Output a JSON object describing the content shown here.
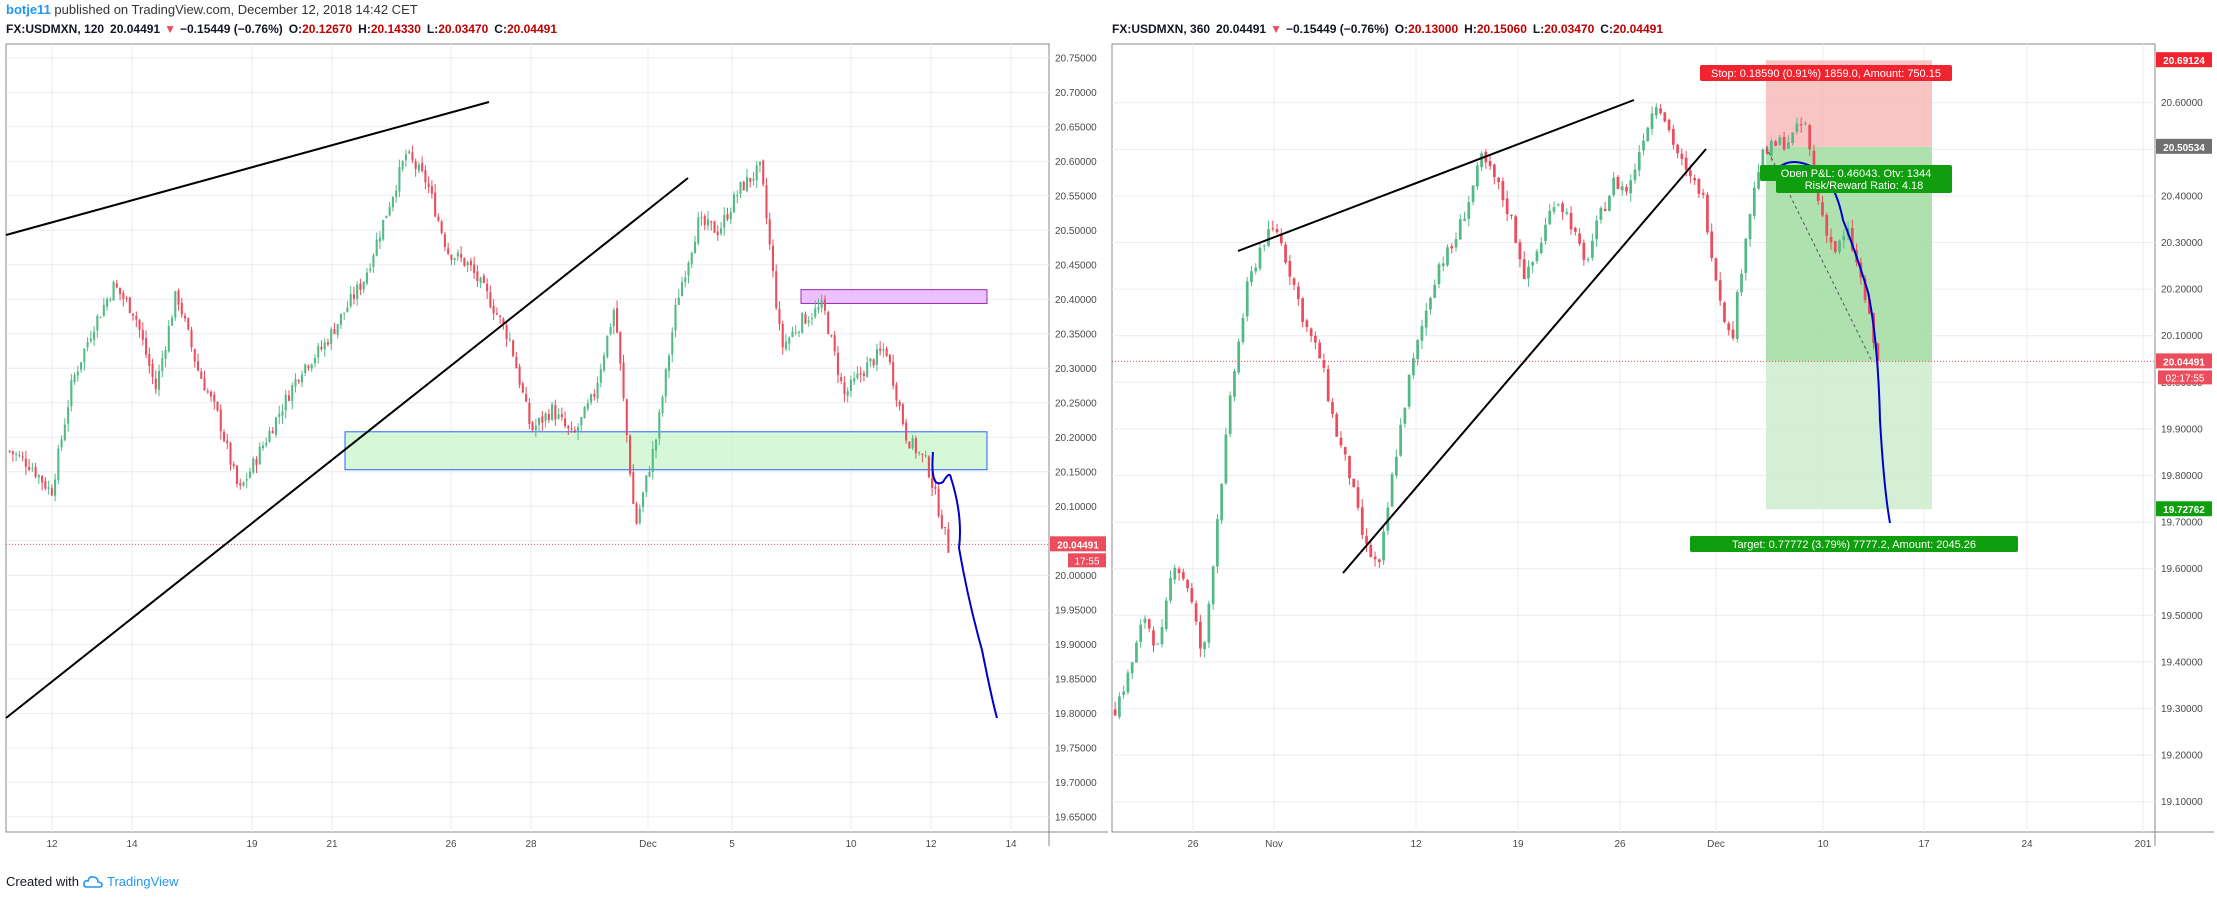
{
  "header": {
    "author": "botje11",
    "meta": "published on TradingView.com, December 12, 2018 14:42 CET"
  },
  "footer": {
    "created_with": "Created with",
    "brand": "TradingView"
  },
  "chart_data": [
    {
      "type": "candlestick",
      "symbol": "FX:USDMXN",
      "interval": "120",
      "quote": {
        "last": "20.04491",
        "change": "−0.15449 (−0.76%)",
        "direction": "down",
        "o": "20.12670",
        "h": "20.14330",
        "l": "20.03470",
        "c": "20.04491"
      },
      "y_ticks": [
        "20.75000",
        "20.70000",
        "20.65000",
        "20.60000",
        "20.55000",
        "20.50000",
        "20.45000",
        "20.40000",
        "20.35000",
        "20.30000",
        "20.25000",
        "20.20000",
        "20.15000",
        "20.10000",
        "20.05000",
        "20.00000",
        "19.95000",
        "19.90000",
        "19.85000",
        "19.80000",
        "19.75000",
        "19.70000",
        "19.65000"
      ],
      "ylim": [
        19.628,
        20.77
      ],
      "x_ticks": [
        "12",
        "14",
        "19",
        "21",
        "26",
        "28",
        "Dec",
        "5",
        "10",
        "12",
        "14"
      ],
      "last_price_label": "20.04491",
      "countdown_label": "17:55",
      "approx_close_path": [
        20.18,
        20.16,
        20.12,
        20.28,
        20.36,
        20.42,
        20.38,
        20.27,
        20.41,
        20.3,
        20.23,
        20.12,
        20.18,
        20.24,
        20.3,
        20.33,
        20.38,
        20.43,
        20.52,
        20.61,
        20.57,
        20.47,
        20.45,
        20.4,
        20.34,
        20.21,
        20.24,
        20.2,
        20.26,
        20.39,
        20.07,
        20.2,
        20.4,
        20.51,
        20.5,
        20.56,
        20.59,
        20.33,
        20.37,
        20.39,
        20.26,
        20.3,
        20.33,
        20.2,
        20.16,
        20.04
      ],
      "annotations": {
        "resistance_zone": [
          20.394,
          20.414
        ],
        "support_zone": [
          20.153,
          20.208
        ],
        "projected_path_end": 19.8
      },
      "grid": true
    },
    {
      "type": "candlestick",
      "symbol": "FX:USDMXN",
      "interval": "360",
      "quote": {
        "last": "20.04491",
        "change": "−0.15449 (−0.76%)",
        "direction": "down",
        "o": "20.13000",
        "h": "20.15060",
        "l": "20.03470",
        "c": "20.04491"
      },
      "y_ticks": [
        "20.60000",
        "20.50000",
        "20.40000",
        "20.30000",
        "20.20000",
        "20.10000",
        "20.00000",
        "19.90000",
        "19.80000",
        "19.70000",
        "19.60000",
        "19.50000",
        "19.40000",
        "19.30000",
        "19.20000",
        "19.10000"
      ],
      "ylim": [
        19.035,
        20.726
      ],
      "x_ticks": [
        "26",
        "Nov",
        "12",
        "19",
        "26",
        "Dec",
        "10",
        "17",
        "24",
        "201"
      ],
      "price_labels": {
        "stop": "20.69124",
        "entry": "20.50534",
        "last": "20.04491",
        "countdown": "02:17:55",
        "target": "19.72762"
      },
      "approx_close_path": [
        19.3,
        19.38,
        19.5,
        19.42,
        19.62,
        19.56,
        19.4,
        19.72,
        20.0,
        20.2,
        20.3,
        20.33,
        20.23,
        20.12,
        20.05,
        19.9,
        19.8,
        19.65,
        19.6,
        19.82,
        20.0,
        20.13,
        20.25,
        20.29,
        20.38,
        20.48,
        20.43,
        20.35,
        20.22,
        20.3,
        20.4,
        20.35,
        20.25,
        20.35,
        20.43,
        20.41,
        20.53,
        20.61,
        20.52,
        20.44,
        20.41,
        20.22,
        20.08,
        20.32,
        20.48,
        20.51,
        20.52,
        20.56,
        20.38,
        20.28,
        20.32,
        20.2,
        20.04
      ],
      "position": {
        "stop_label": "Stop: 0.18590 (0.91%) 1859.0, Amount: 750.15",
        "pnl_label": "Open P&L: 0.46043, Qty: 1344",
        "rr_label": "Risk/Reward Ratio: 4.18",
        "target_label": "Target: 0.77772 (3.79%) 7777.2, Amount: 2045.26"
      },
      "annotations": {
        "projected_path_end": 19.765
      },
      "grid": true
    }
  ],
  "colors": {
    "up": "#53b987",
    "down": "#eb4d5c",
    "grid": "#e9ecf0",
    "axis_text": "#4a4a4a",
    "projection": "#0000cc",
    "trendline": "#000000",
    "resistance_fill": "#e7b6ff",
    "resistance_stroke": "#9c27b0",
    "support_fill": "#c8f5c8",
    "support_stroke": "#2962ff",
    "stop_zone": "#f7b5b5",
    "target_zone_dark": "#a0dca0",
    "target_zone_light": "#cdeccd",
    "label_red": "#f0232f",
    "label_green": "#0e9e0e",
    "label_grey": "#707070"
  }
}
